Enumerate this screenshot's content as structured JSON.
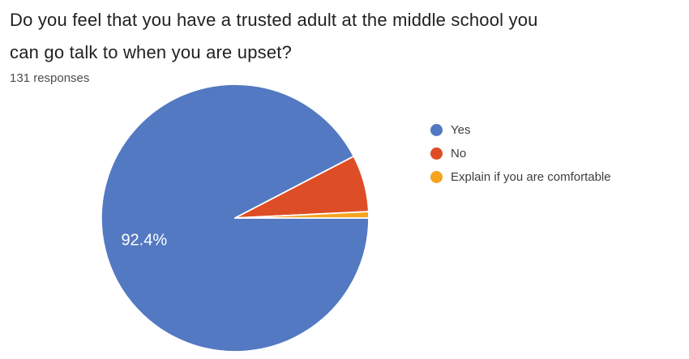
{
  "header": {
    "title_lines": [
      "Do you feel that you have a trusted adult at the middle school you",
      "can go talk to when you are upset?"
    ],
    "responses_count_label": "131 responses"
  },
  "chart_data": {
    "type": "pie",
    "title": "Do you feel that you have a trusted adult at the middle school you can go talk to when you are upset?",
    "subtitle": "131 responses",
    "categories": [
      "Yes",
      "No",
      "Explain if you are comfortable"
    ],
    "values": [
      121,
      9,
      1
    ],
    "percentages": [
      92.4,
      6.9,
      0.8
    ],
    "slice_labels": [
      "92.4%",
      "",
      ""
    ],
    "colors": [
      "#5379c2",
      "#de4e26",
      "#f4a41d"
    ],
    "label_color": "#ffffff",
    "slice_border_color": "#ffffff",
    "start_angle_deg": 0,
    "direction": "clockwise",
    "legend_position": "right",
    "total_responses": 131
  }
}
